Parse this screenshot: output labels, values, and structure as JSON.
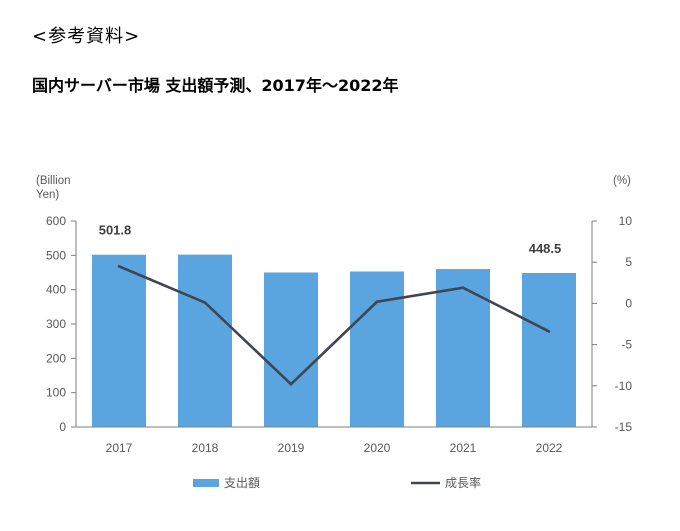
{
  "header": {
    "ref_label": "<参考資料>",
    "title": "国内サーバー市場 支出額予測、2017年～2022年"
  },
  "colors": {
    "bar": "#5aa5e0",
    "line": "#404552",
    "axis": "#7f7f7f"
  },
  "chart_data": {
    "type": "bar",
    "categories": [
      "2017",
      "2018",
      "2019",
      "2020",
      "2021",
      "2022"
    ],
    "series": [
      {
        "name": "支出額",
        "type": "bar",
        "axis": "left",
        "values": [
          501.8,
          502,
          450,
          453,
          460,
          448.5
        ]
      },
      {
        "name": "成長率",
        "type": "line",
        "axis": "right",
        "values": [
          4.5,
          0.1,
          -9.8,
          0.2,
          1.9,
          -3.4
        ]
      }
    ],
    "data_labels": [
      {
        "category": "2017",
        "text": "501.8"
      },
      {
        "category": "2022",
        "text": "448.5"
      }
    ],
    "y_left": {
      "label": "(Billion Yen)",
      "label_lines": [
        "(Billion",
        "Yen)"
      ],
      "lim": [
        0,
        600
      ],
      "ticks": [
        "0",
        "100",
        "200",
        "300",
        "400",
        "500",
        "600"
      ]
    },
    "y_right": {
      "label": "(%)",
      "lim": [
        -15,
        10
      ],
      "ticks": [
        "-15",
        "-10",
        "-5",
        "0",
        "5",
        "10"
      ]
    },
    "legend_position": "bottom",
    "grid": false
  }
}
